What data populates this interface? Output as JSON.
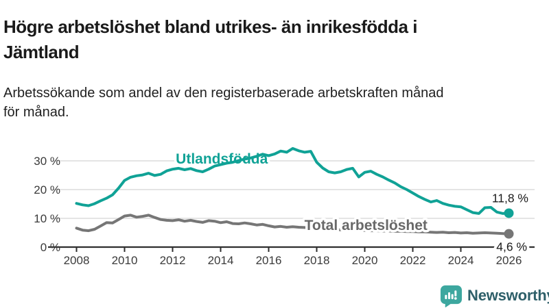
{
  "header": {
    "title_lines": [
      "Högre arbetslöshet bland utrikes- än inrikesfödda i",
      "Jämtland"
    ],
    "subtitle_lines": [
      "Arbetssökande som andel av den registerbaserade arbetskraften månad",
      "för månad."
    ]
  },
  "branding": {
    "logo_text": "Newsworthy",
    "icon_color": "#3da79f",
    "wordmark_color": "#2e5f69"
  },
  "chart_data": {
    "type": "line",
    "title": "Högre arbetslöshet bland utrikes- än inrikesfödda i Jämtland",
    "subtitle": "Arbetssökande som andel av den registerbaserade arbetskraften månad för månad.",
    "grid": "horizontal",
    "legend_position": "inline-labels",
    "x_axis": {
      "ticks": [
        2008,
        2010,
        2012,
        2014,
        2016,
        2018,
        2020,
        2022,
        2024,
        2026
      ],
      "range": [
        2008,
        2026
      ]
    },
    "y_axis": {
      "ticks": [
        0,
        10,
        20,
        30
      ],
      "tick_suffix": " %",
      "range": [
        0,
        35
      ]
    },
    "colors": {
      "grid": "#dcdcdc",
      "axis": "#2e2e2e",
      "tick_text": "#3a3a3a",
      "end_label_text": "#1a1a1a"
    },
    "series": [
      {
        "name": "Utlandsfödda",
        "color": "#10a296",
        "label_color": "#10a296",
        "label_at": {
          "x": 2014.05,
          "y": 30.7
        },
        "end_label": "11,8 %",
        "end_value": 11.8,
        "x_start": 2008,
        "x_step": 0.25,
        "values": [
          15.2,
          14.7,
          14.4,
          15.1,
          16.1,
          17.0,
          18.2,
          20.5,
          23.2,
          24.3,
          24.8,
          25.1,
          25.7,
          24.9,
          25.3,
          26.5,
          27.1,
          27.4,
          26.9,
          27.3,
          26.6,
          26.2,
          27.1,
          28.2,
          28.7,
          29.2,
          29.5,
          30.1,
          30.6,
          31.0,
          31.6,
          32.3,
          31.8,
          32.4,
          33.4,
          33.0,
          34.3,
          33.5,
          33.0,
          33.3,
          29.5,
          27.5,
          26.2,
          25.8,
          26.2,
          27.0,
          27.4,
          24.4,
          26.0,
          26.4,
          25.3,
          24.4,
          23.3,
          22.3,
          21.0,
          20.0,
          18.8,
          17.6,
          16.6,
          15.7,
          16.2,
          15.2,
          14.6,
          14.2,
          14.0,
          13.0,
          12.0,
          11.7,
          13.7,
          13.8,
          12.2,
          11.7,
          11.8
        ]
      },
      {
        "name": "Total arbetslöshet",
        "color": "#767676",
        "label_color": "#686868",
        "label_at": {
          "x": 2020.05,
          "y": 7.6
        },
        "end_label": "4,6 %",
        "end_value": 4.6,
        "x_start": 2008,
        "x_step": 0.25,
        "values": [
          6.6,
          5.9,
          5.7,
          6.2,
          7.3,
          8.5,
          8.4,
          9.6,
          10.8,
          11.1,
          10.4,
          10.7,
          11.1,
          10.3,
          9.6,
          9.3,
          9.2,
          9.5,
          9.0,
          9.3,
          8.9,
          8.6,
          9.2,
          9.0,
          8.5,
          8.8,
          8.2,
          8.1,
          8.4,
          8.1,
          7.7,
          7.9,
          7.4,
          7.0,
          7.2,
          6.9,
          7.1,
          6.9,
          6.8,
          6.6,
          6.5,
          6.3,
          6.2,
          6.1,
          6.0,
          5.9,
          5.9,
          5.8,
          5.8,
          5.7,
          5.7,
          5.6,
          5.6,
          5.5,
          5.5,
          5.4,
          5.4,
          5.3,
          5.3,
          5.2,
          5.1,
          5.2,
          5.0,
          5.1,
          4.9,
          5.0,
          4.8,
          4.9,
          5.0,
          4.9,
          4.8,
          4.7,
          4.6
        ]
      }
    ]
  }
}
